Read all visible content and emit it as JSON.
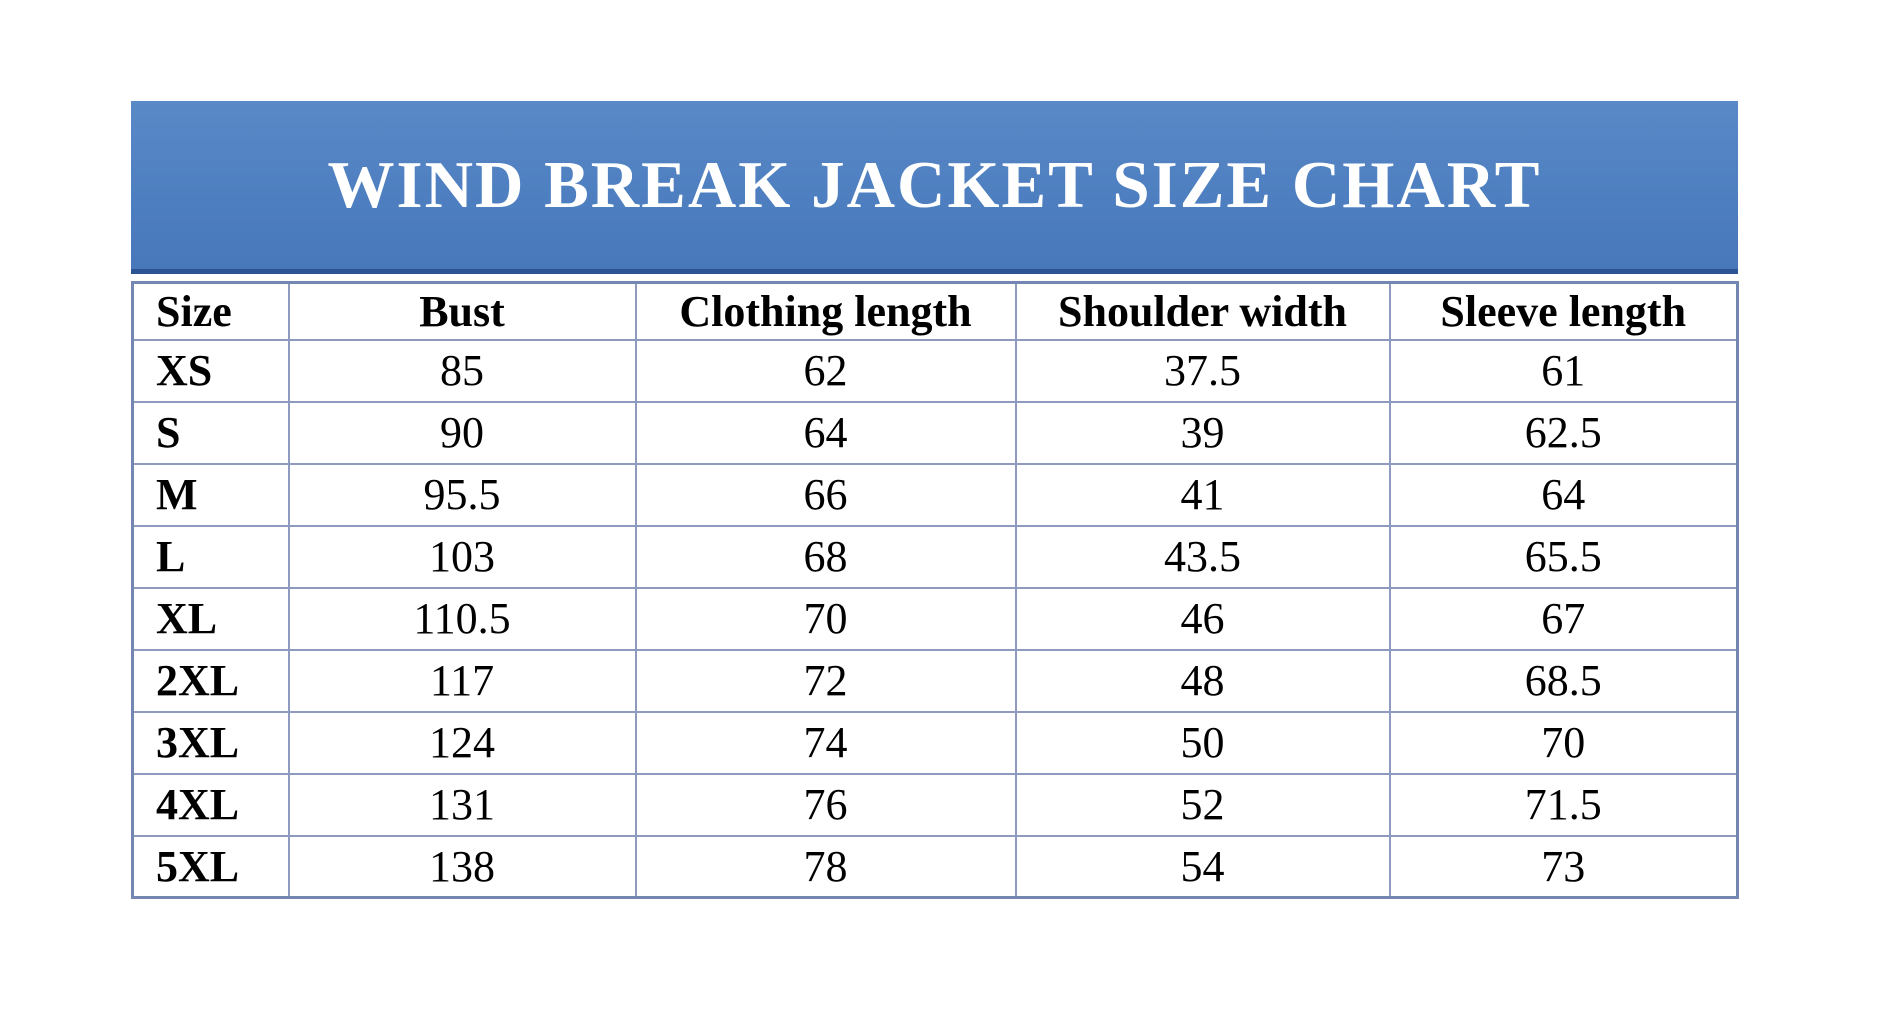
{
  "banner": {
    "background_top": "#5a89c7",
    "background_bottom": "#4878ba",
    "bottom_edge_color": "#2d5492",
    "text_color": "#ffffff"
  },
  "table_style": {
    "cell_border_color": "#8e9ac0",
    "outer_border_color": "#7487b3",
    "text_color": "#000000",
    "background": "#ffffff"
  },
  "chart_data": {
    "type": "table",
    "title": "WIND BREAK JACKET SIZE CHART",
    "columns": [
      "Size",
      "Bust",
      "Clothing length",
      "Shoulder width",
      "Sleeve length"
    ],
    "rows": [
      [
        "XS",
        "85",
        "62",
        "37.5",
        "61"
      ],
      [
        "S",
        "90",
        "64",
        "39",
        "62.5"
      ],
      [
        "M",
        "95.5",
        "66",
        "41",
        "64"
      ],
      [
        "L",
        "103",
        "68",
        "43.5",
        "65.5"
      ],
      [
        "XL",
        "110.5",
        "70",
        "46",
        "67"
      ],
      [
        "2XL",
        "117",
        "72",
        "48",
        "68.5"
      ],
      [
        "3XL",
        "124",
        "74",
        "50",
        "70"
      ],
      [
        "4XL",
        "131",
        "76",
        "52",
        "71.5"
      ],
      [
        "5XL",
        "138",
        "78",
        "54",
        "73"
      ]
    ]
  }
}
